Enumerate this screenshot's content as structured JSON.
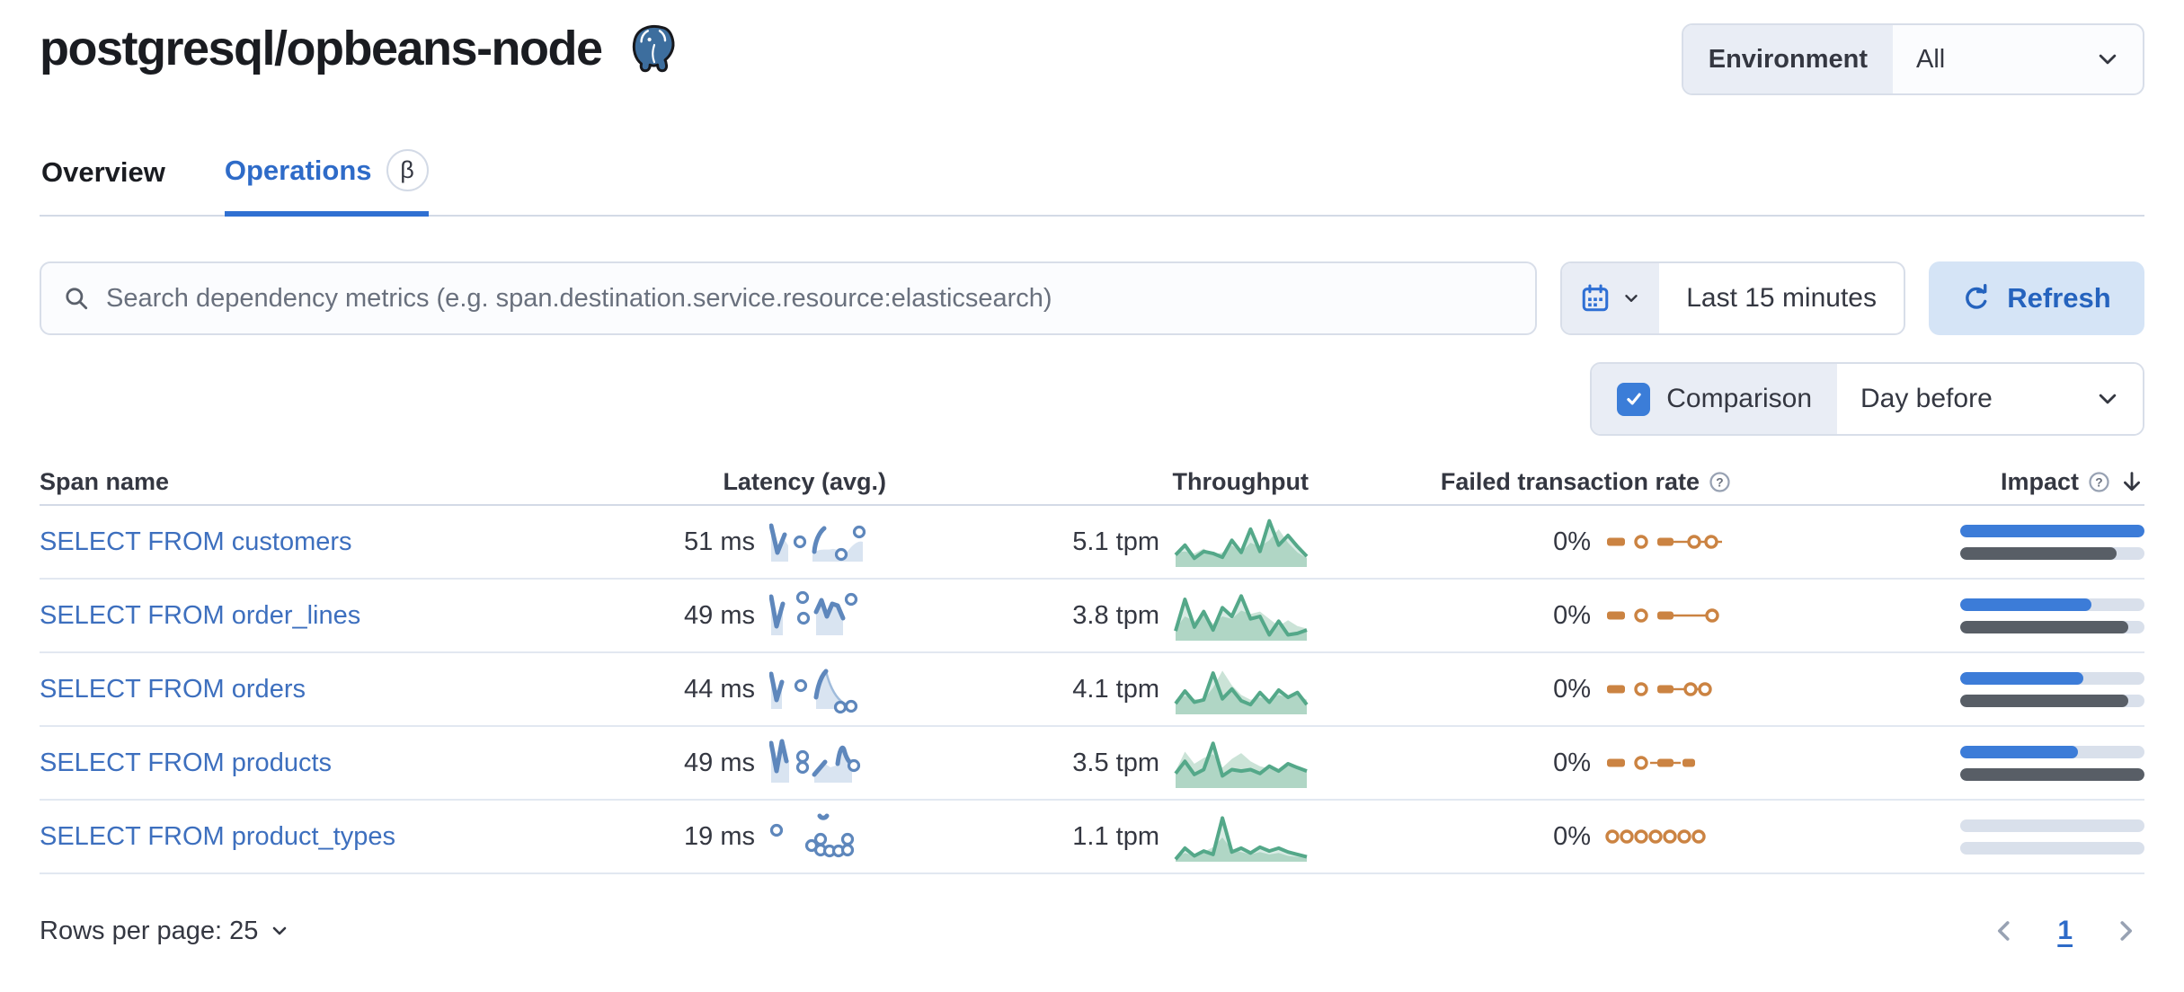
{
  "page": {
    "title": "postgresql/opbeans-node"
  },
  "environment": {
    "label": "Environment",
    "value": "All"
  },
  "tabs": {
    "overview": "Overview",
    "operations": "Operations",
    "beta": "β"
  },
  "toolbar": {
    "search_placeholder": "Search dependency metrics (e.g. span.destination.service.resource:elasticsearch)",
    "time_range": "Last 15 minutes",
    "refresh": "Refresh"
  },
  "comparison": {
    "label": "Comparison",
    "checked": true,
    "value": "Day before"
  },
  "table": {
    "headers": {
      "span": "Span name",
      "latency": "Latency (avg.)",
      "throughput": "Throughput",
      "failed": "Failed transaction rate",
      "impact": "Impact"
    },
    "rows": [
      {
        "name": "SELECT FROM customers",
        "latency": "51 ms",
        "throughput": "5.1 tpm",
        "failed_rate": "0%",
        "impact": {
          "current": 100,
          "previous": 85
        },
        "sparklines": {
          "latency": {
            "areas": [
              "M2,18 L9,44 L17,28 L21,34 L21,52 L2,52 Z",
              "M48,44 C56,36 62,40 70,38 C76,37 80,44 86,42 C92,34 98,28 104,30 L104,52 L48,52 Z"
            ],
            "strokes": [
              "M2,12 L9,42 L17,22",
              "M61,15 C55,20 51,30 50,41"
            ],
            "thin": [],
            "dots": [
              [
                34,
                30
              ],
              [
                80,
                44
              ],
              [
                100,
                19
              ]
            ]
          },
          "throughput": {
            "prev": [
              0.3,
              0.32,
              0.28,
              0.38,
              0.25,
              0.3,
              0.45,
              0.3,
              0.5,
              0.42,
              0.55,
              0.78,
              0.5,
              0.3,
              0.18
            ],
            "line": [
              0.25,
              0.45,
              0.18,
              0.32,
              0.28,
              0.2,
              0.55,
              0.3,
              0.78,
              0.32,
              0.95,
              0.45,
              0.65,
              0.42,
              0.22
            ]
          },
          "failed": {
            "items": [
              [
                "dash",
                2,
                20
              ],
              [
                "dot",
                40
              ],
              [
                "dash",
                58,
                18
              ],
              [
                "seg",
                76,
                92
              ],
              [
                "dot",
                99
              ],
              [
                "seg",
                105,
                111
              ],
              [
                "dot",
                118
              ],
              [
                "seg",
                124,
                130
              ]
            ]
          }
        }
      },
      {
        "name": "SELECT FROM order_lines",
        "latency": "49 ms",
        "throughput": "3.8 tpm",
        "failed_rate": "0%",
        "impact": {
          "current": 71,
          "previous": 91
        },
        "sparklines": {
          "latency": {
            "areas": [
              "M2,16 L8,44 L15,24 L15,52 L2,52 Z",
              "M52,28 L58,16 L64,34 L70,20 L76,22 L82,36 L82,52 L52,52 Z"
            ],
            "strokes": [
              "M2,9 L8,42 L15,17",
              "M52,26 L58,13 L64,31 L70,17 L76,19 L82,33"
            ],
            "thin": [],
            "dots": [
              [
                37,
                10
              ],
              [
                38,
                33
              ],
              [
                91,
                12
              ]
            ]
          },
          "throughput": {
            "prev": [
              0.25,
              0.5,
              0.4,
              0.55,
              0.35,
              0.5,
              0.45,
              0.62,
              0.55,
              0.6,
              0.45,
              0.3,
              0.42,
              0.3,
              0.25
            ],
            "line": [
              0.2,
              0.85,
              0.28,
              0.6,
              0.22,
              0.68,
              0.5,
              0.92,
              0.45,
              0.5,
              0.12,
              0.4,
              0.12,
              0.15,
              0.22
            ]
          },
          "failed": {
            "items": [
              [
                "dash",
                2,
                20
              ],
              [
                "dot",
                40
              ],
              [
                "dash",
                58,
                18
              ],
              [
                "seg",
                76,
                112
              ],
              [
                "dot",
                119
              ]
            ]
          }
        }
      },
      {
        "name": "SELECT FROM orders",
        "latency": "44 ms",
        "throughput": "4.1 tpm",
        "failed_rate": "0%",
        "impact": {
          "current": 67,
          "previous": 91
        },
        "sparklines": {
          "latency": {
            "areas": [
              "M2,20 L8,44 L14,28 L14,52 L2,52 Z",
              "M52,42 C55,22 59,13 63,11 C68,30 76,44 90,49 L90,52 L52,52 Z"
            ],
            "strokes": [
              "M2,13 L8,42 L14,22",
              "M52,39 C54,26 58,15 63,10"
            ],
            "thin": [
              "M63,10 C68,30 76,44 88,48"
            ],
            "dots": [
              [
                35,
                26
              ],
              [
                79,
                50
              ],
              [
                91,
                49
              ]
            ]
          },
          "throughput": {
            "prev": [
              0.3,
              0.38,
              0.32,
              0.3,
              0.55,
              0.9,
              0.6,
              0.4,
              0.3,
              0.35,
              0.3,
              0.4,
              0.35,
              0.4,
              0.3
            ],
            "line": [
              0.22,
              0.48,
              0.25,
              0.3,
              0.85,
              0.32,
              0.52,
              0.28,
              0.2,
              0.45,
              0.25,
              0.5,
              0.35,
              0.45,
              0.2
            ]
          },
          "failed": {
            "items": [
              [
                "dash",
                2,
                20
              ],
              [
                "dot",
                40
              ],
              [
                "dash",
                58,
                18
              ],
              [
                "seg",
                76,
                88
              ],
              [
                "dot",
                95
              ],
              [
                "seg",
                101,
                104
              ],
              [
                "dot",
                111
              ]
            ]
          }
        }
      },
      {
        "name": "SELECT FROM products",
        "latency": "49 ms",
        "throughput": "3.5 tpm",
        "failed_rate": "0%",
        "impact": {
          "current": 64,
          "previous": 100
        },
        "sparklines": {
          "latency": {
            "areas": [
              "M2,14 L8,40 L14,10 L19,30 L22,27 L22,52 L2,52 Z",
              "M50,45 L62,31 L68,35 L74,33 L80,14 L84,26 L92,33 L92,52 L50,52 Z"
            ],
            "strokes": [
              "M2,8 L8,39 L14,6 L19,28",
              "M50,43 L62,29",
              "M76,31 C78,16 81,10 83,15 C85,23 88,29 92,31"
            ],
            "thin": [],
            "dots": [
              [
                37,
                23
              ],
              [
                37,
                35
              ],
              [
                94,
                33
              ]
            ]
          },
          "throughput": {
            "prev": [
              0.35,
              0.75,
              0.5,
              0.62,
              0.7,
              0.42,
              0.6,
              0.72,
              0.55,
              0.45,
              0.4,
              0.35,
              0.45,
              0.4,
              0.35
            ],
            "line": [
              0.3,
              0.55,
              0.28,
              0.38,
              0.92,
              0.25,
              0.38,
              0.35,
              0.38,
              0.3,
              0.45,
              0.35,
              0.5,
              0.42,
              0.35
            ]
          },
          "failed": {
            "items": [
              [
                "dash",
                2,
                20
              ],
              [
                "dot",
                40
              ],
              [
                "seg",
                50,
                58
              ],
              [
                "dash",
                58,
                18
              ],
              [
                "seg",
                76,
                84
              ],
              [
                "dash",
                86,
                14
              ]
            ]
          }
        }
      },
      {
        "name": "SELECT FROM product_types",
        "latency": "19 ms",
        "throughput": "1.1 tpm",
        "failed_rate": "0%",
        "impact": {
          "current": 0,
          "previous": 0
        },
        "sparklines": {
          "latency": {
            "areas": [],
            "strokes": [
              "M56,7 C58,10 62,10 64,7"
            ],
            "thin": [],
            "dots": [
              [
                8,
                23
              ],
              [
                47,
                40
              ],
              [
                57,
                33
              ],
              [
                57,
                45
              ],
              [
                67,
                46
              ],
              [
                77,
                46
              ],
              [
                87,
                33
              ],
              [
                87,
                45
              ]
            ]
          },
          "throughput": {
            "prev": [
              0.08,
              0.18,
              0.12,
              0.2,
              0.3,
              0.5,
              0.25,
              0.2,
              0.15,
              0.2,
              0.15,
              0.18,
              0.12,
              0.1,
              0.08
            ],
            "line": [
              0.05,
              0.28,
              0.12,
              0.22,
              0.15,
              0.9,
              0.2,
              0.28,
              0.18,
              0.3,
              0.22,
              0.28,
              0.2,
              0.15,
              0.1
            ]
          },
          "failed": {
            "items": [
              [
                "dot",
                8
              ],
              [
                "dot",
                24
              ],
              [
                "dot",
                40
              ],
              [
                "dot",
                56
              ],
              [
                "dot",
                72
              ],
              [
                "dot",
                88
              ],
              [
                "dot",
                104
              ]
            ]
          }
        }
      }
    ]
  },
  "footer": {
    "rows_per_page": "Rows per page: 25",
    "page": "1"
  },
  "colors": {
    "link_blue": "#3D6FBE",
    "tab_blue": "#2E6BC8",
    "refresh_bg": "#D5E4F6",
    "refresh_text": "#2563BE",
    "checkbox_blue": "#3B7DD8",
    "impact_current": "#3C7CD8",
    "impact_previous": "#585E66",
    "impact_track": "#D9E0EB",
    "latency_line": "#5E87BC",
    "latency_fill": "#D9E4F1",
    "latency_thin": "#9FBBDB",
    "throughput_line": "#54A889",
    "throughput_prev_fill": "#CBE3D7",
    "failed_orange": "#CB8342",
    "segment_bg": "#E9EDF5",
    "control_border": "#D8DEE9"
  }
}
